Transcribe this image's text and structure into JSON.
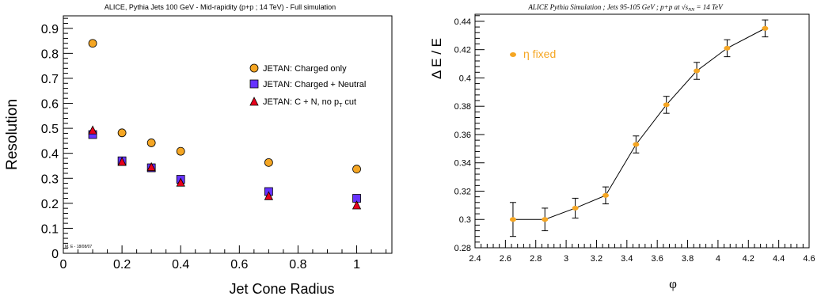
{
  "chart_data": [
    {
      "type": "scatter",
      "title": "ALICE, Pythia Jets 100 GeV - Mid-rapidity (p+p ; 14 TeV) - Full simulation",
      "xlabel": "Jet Cone Radius",
      "ylabel": "Resolution",
      "xlim": [
        0,
        1.12
      ],
      "ylim": [
        0,
        0.95
      ],
      "xticks": [
        "0",
        "0.2",
        "0.4",
        "0.6",
        "0.8",
        "1"
      ],
      "yticks": [
        "0",
        "0.1",
        "0.2",
        "0.3",
        "0.4",
        "0.5",
        "0.6",
        "0.7",
        "0.8",
        "0.9"
      ],
      "stamp": "M. E - 18/08/07",
      "legend_position": "right",
      "series": [
        {
          "name": "JETAN: Charged only",
          "marker": "circle",
          "color": "#f5a623",
          "points": [
            [
              0.1,
              0.84
            ],
            [
              0.2,
              0.482
            ],
            [
              0.3,
              0.442
            ],
            [
              0.4,
              0.408
            ],
            [
              0.7,
              0.363
            ],
            [
              1.0,
              0.337
            ]
          ]
        },
        {
          "name": "JETAN: Charged + Neutral",
          "marker": "square",
          "color": "#6633ff",
          "points": [
            [
              0.1,
              0.475
            ],
            [
              0.2,
              0.37
            ],
            [
              0.3,
              0.342
            ],
            [
              0.4,
              0.296
            ],
            [
              0.7,
              0.247
            ],
            [
              1.0,
              0.22
            ]
          ]
        },
        {
          "name": "JETAN: C + N, no p",
          "name_sub": "T",
          "name_suffix": " cut",
          "marker": "triangle",
          "color": "#e8001c",
          "points": [
            [
              0.1,
              0.49
            ],
            [
              0.2,
              0.364
            ],
            [
              0.3,
              0.343
            ],
            [
              0.4,
              0.281
            ],
            [
              0.7,
              0.227
            ],
            [
              1.0,
              0.19
            ]
          ]
        }
      ]
    },
    {
      "type": "line",
      "title": "ALICE Pythia Simulation ; Jets 95-105 GeV ; p+p at",
      "title_math": "√s",
      "title_sub": "NN",
      "title_suffix": " = 14 TeV",
      "xlabel": "φ",
      "ylabel": "Δ E / E",
      "xlim": [
        2.4,
        4.6
      ],
      "ylim": [
        0.28,
        0.445
      ],
      "xticks": [
        "2.4",
        "2.6",
        "2.8",
        "3",
        "3.2",
        "3.4",
        "3.6",
        "3.8",
        "4",
        "4.2",
        "4.4",
        "4.6"
      ],
      "yticks": [
        "0.28",
        "0.3",
        "0.32",
        "0.34",
        "0.36",
        "0.38",
        "0.4",
        "0.42",
        "0.44"
      ],
      "legend_label": "η fixed",
      "color": "#f5a623",
      "series": [
        {
          "name": "η fixed",
          "x": [
            2.65,
            2.86,
            3.06,
            3.26,
            3.46,
            3.66,
            3.86,
            4.06,
            4.31
          ],
          "y": [
            0.3,
            0.3,
            0.308,
            0.317,
            0.353,
            0.381,
            0.405,
            0.421,
            0.435
          ],
          "err": [
            0.012,
            0.008,
            0.007,
            0.006,
            0.006,
            0.006,
            0.006,
            0.006,
            0.006
          ]
        }
      ]
    }
  ]
}
